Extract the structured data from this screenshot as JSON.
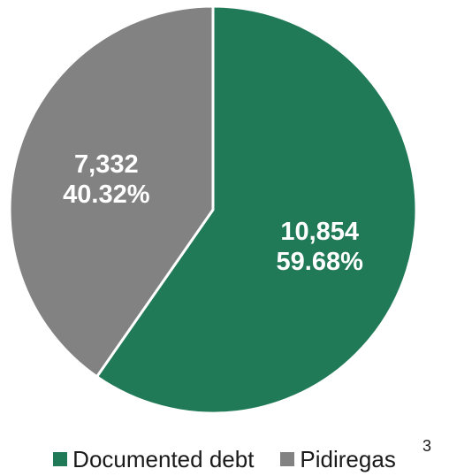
{
  "chart_data": {
    "type": "pie",
    "title": "",
    "start_angle_deg": 0,
    "direction": "clockwise",
    "slices": [
      {
        "name": "Documented debt",
        "value": 10854,
        "value_label": "10,854",
        "percent_label": "59.68%",
        "color": "#217a57"
      },
      {
        "name": "Pidiregas",
        "value": 7332,
        "value_label": "7,332",
        "percent_label": "40.32%",
        "color": "#828282"
      }
    ],
    "legend": {
      "position": "bottom",
      "footnote": "3"
    }
  }
}
